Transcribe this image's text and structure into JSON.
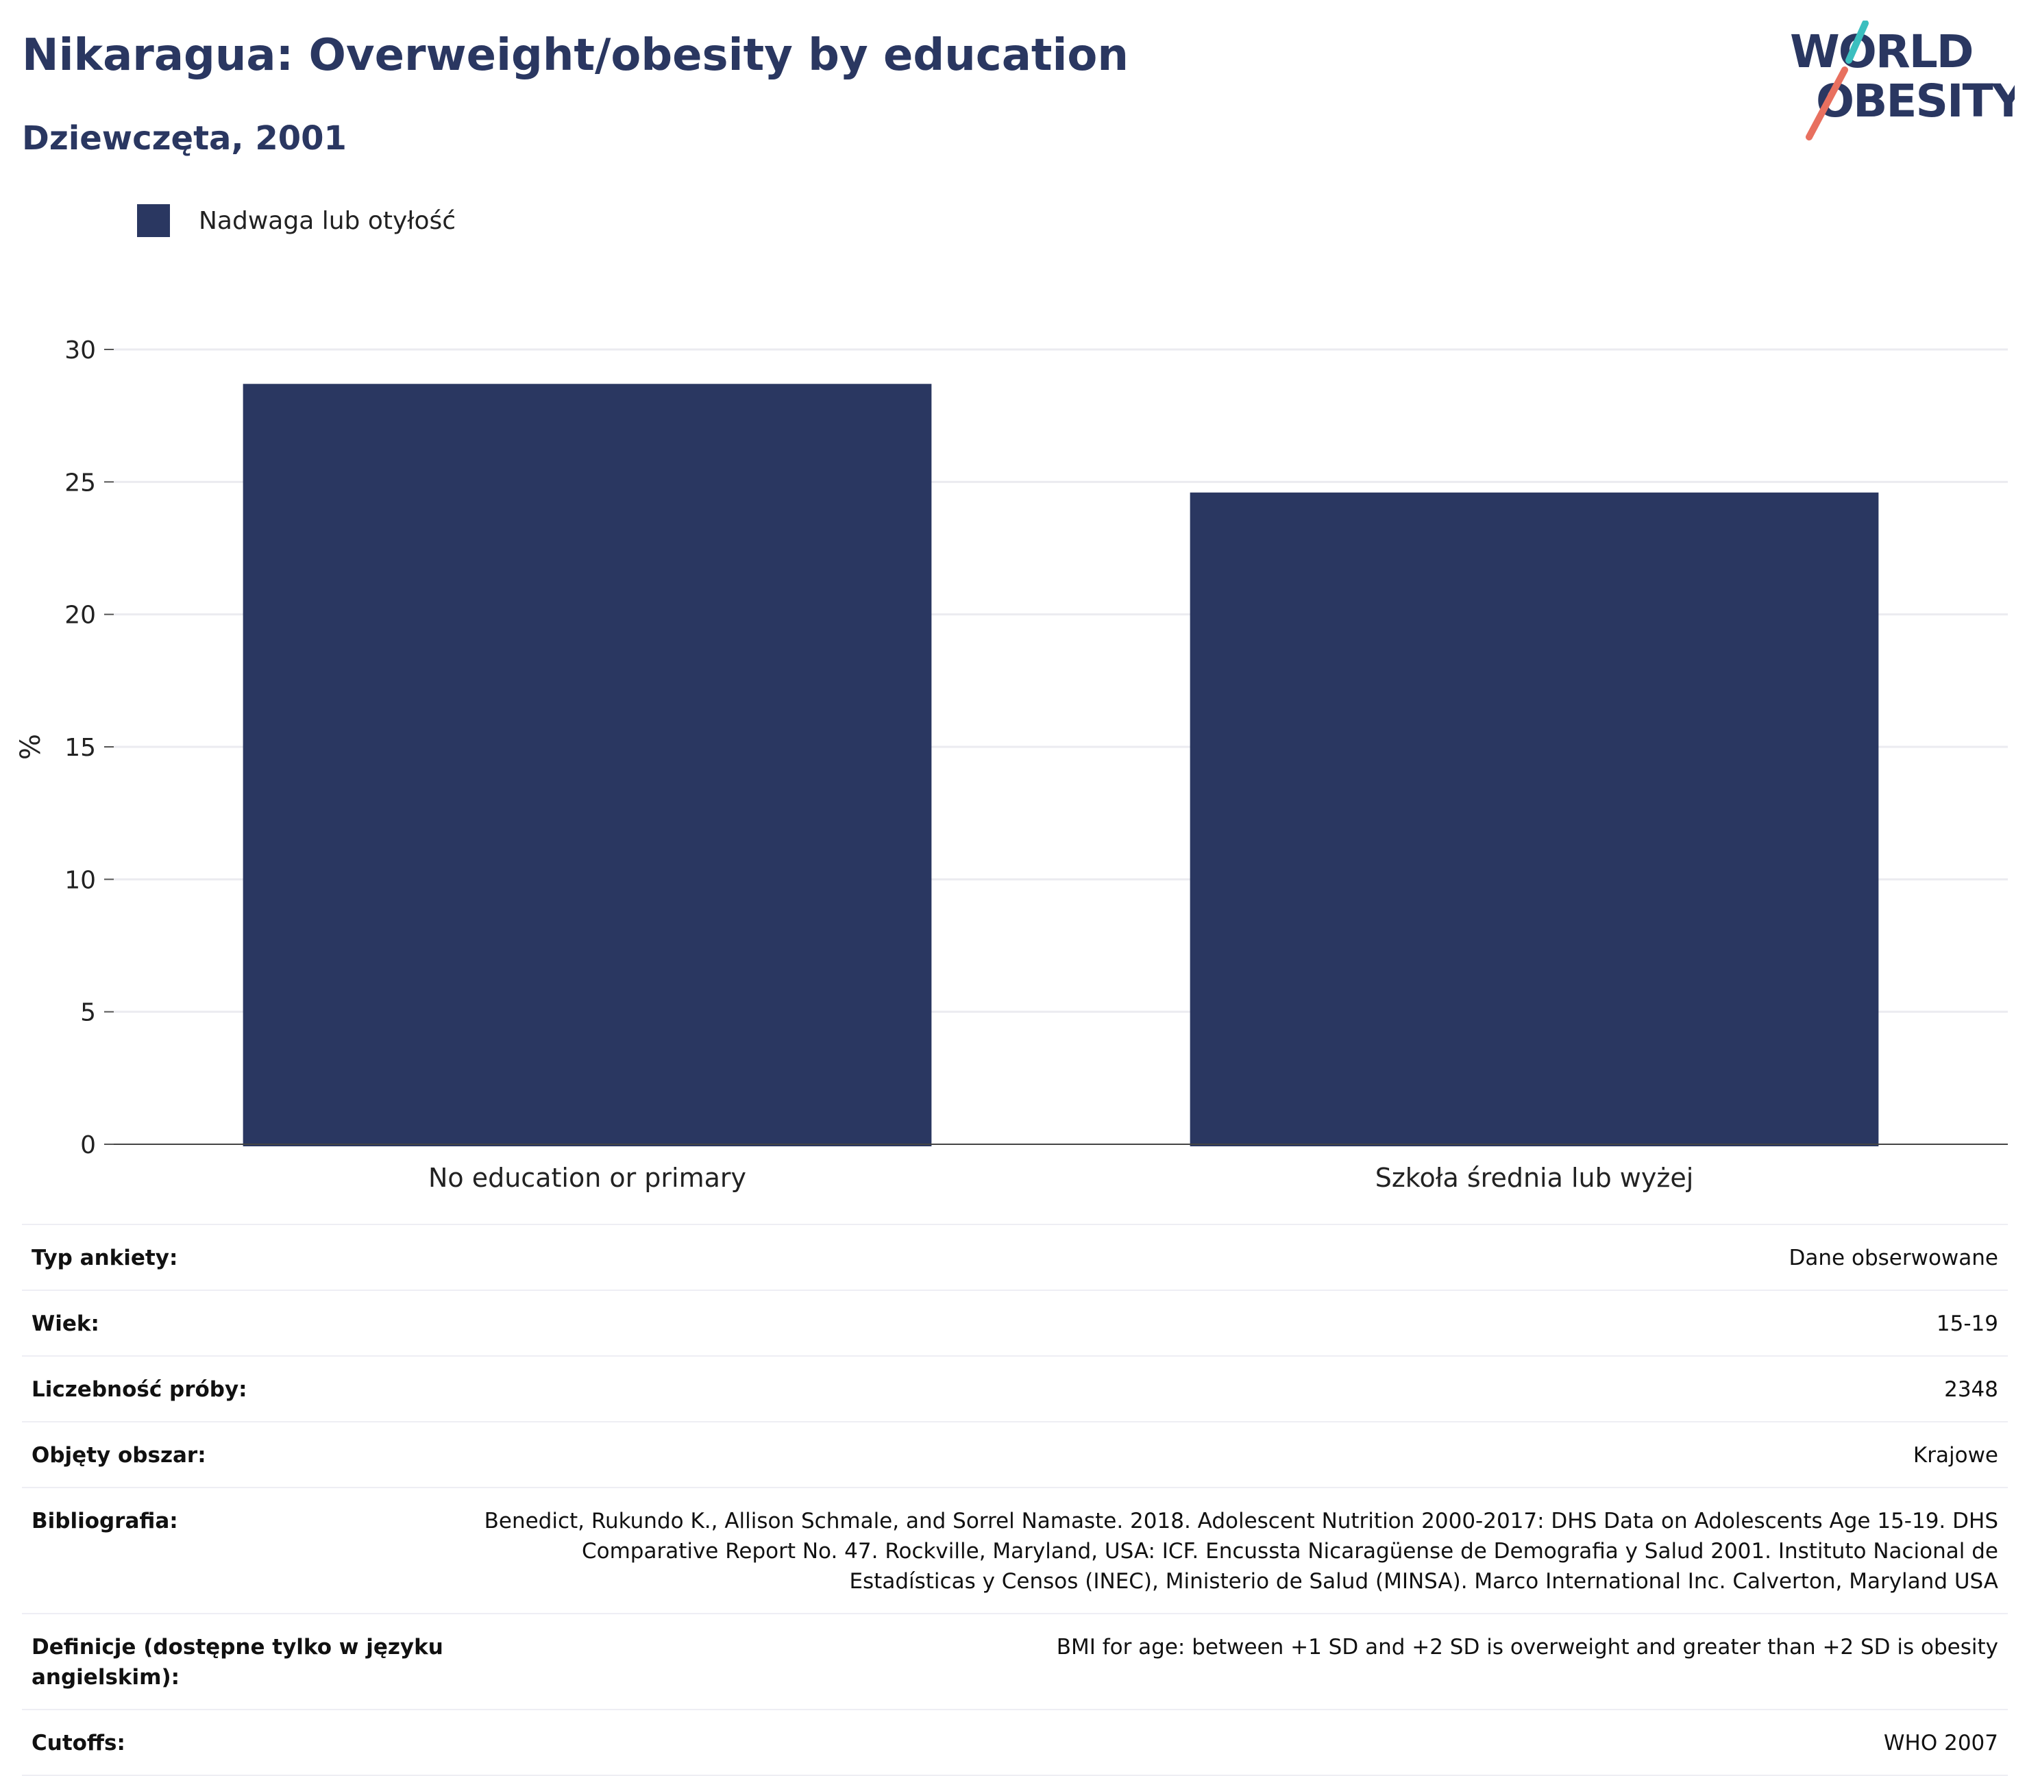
{
  "header": {
    "title": "Nikaragua: Overweight/obesity by education",
    "subtitle": "Dziewczęta, 2001"
  },
  "logo": {
    "line1": "WORLD",
    "line2": "OBESITY",
    "slash_top_color": "#3bbfbf",
    "slash_bottom_color": "#e8705f"
  },
  "legend": {
    "label": "Nadwaga lub otyłość",
    "color": "#2a3761"
  },
  "chart_data": {
    "type": "bar",
    "categories": [
      "No education or primary",
      "Szkoła średnia lub wyżej"
    ],
    "series": [
      {
        "name": "Nadwaga lub otyłość",
        "values": [
          28.7,
          24.6
        ],
        "color": "#2a3761"
      }
    ],
    "ylabel": "%",
    "ylim": [
      0,
      30
    ],
    "yticks": [
      0,
      5,
      10,
      15,
      20,
      25,
      30
    ],
    "grid": true,
    "legend_position": "top-left"
  },
  "info_table": [
    {
      "key": "Typ ankiety:",
      "value": "Dane obserwowane"
    },
    {
      "key": "Wiek:",
      "value": "15-19"
    },
    {
      "key": "Liczebność próby:",
      "value": "2348"
    },
    {
      "key": "Objęty obszar:",
      "value": "Krajowe"
    },
    {
      "key": "Bibliografia:",
      "value": "Benedict, Rukundo K., Allison Schmale, and Sorrel Namaste. 2018. Adolescent Nutrition 2000-2017: DHS Data on Adolescents Age 15-19. DHS Comparative Report No. 47. Rockville, Maryland, USA: ICF. Encussta Nicaragüense de Demografia y Salud 2001. Instituto Nacional de Estadísticas y Censos (INEC), Ministerio de Salud (MINSA). Marco International Inc. Calverton, Maryland USA"
    },
    {
      "key": "Definicje (dostępne tylko w języku angielskim):",
      "value": "BMI for age: between +1 SD and +2 SD is overweight and greater than +2 SD is obesity"
    },
    {
      "key": "Cutoffs:",
      "value": "WHO 2007"
    }
  ]
}
